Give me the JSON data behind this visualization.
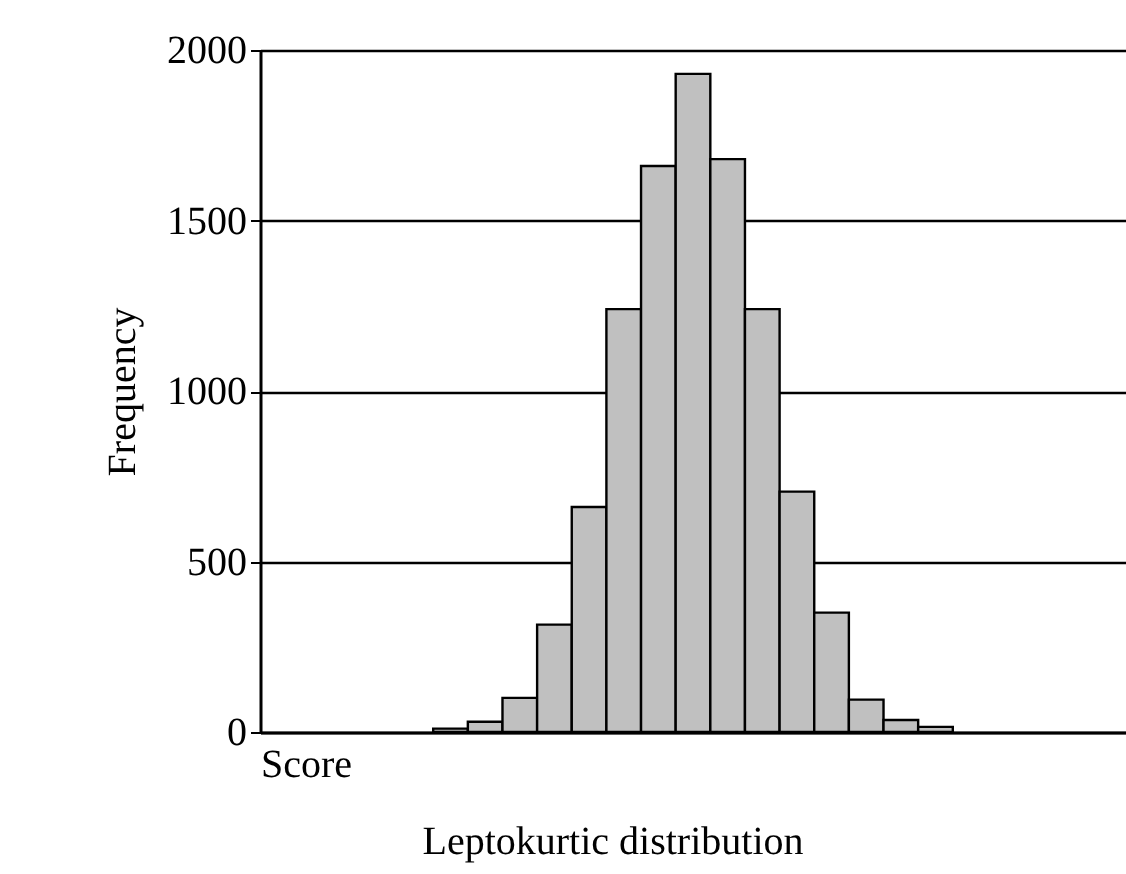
{
  "chart_data": {
    "type": "bar",
    "xlabel": "Score",
    "ylabel": "Frequency",
    "annotations": [
      "Leptokurtic distribution"
    ],
    "categories": [
      null,
      null,
      null,
      null,
      null,
      null,
      null,
      null,
      null,
      null,
      null,
      null,
      null,
      null,
      null,
      null,
      null,
      null,
      null,
      null,
      null,
      null,
      null,
      null,
      null
    ],
    "values": [
      0,
      0,
      0,
      0,
      0,
      10,
      30,
      100,
      315,
      660,
      1240,
      1660,
      1930,
      1680,
      1240,
      705,
      350,
      95,
      35,
      15,
      0,
      0,
      0,
      0,
      0
    ],
    "color": "#c0c0c0",
    "ylim": [
      0,
      2000
    ],
    "yticks": [
      0,
      500,
      1000,
      1500,
      2000
    ],
    "grid": "y",
    "tick_labels": "y"
  }
}
